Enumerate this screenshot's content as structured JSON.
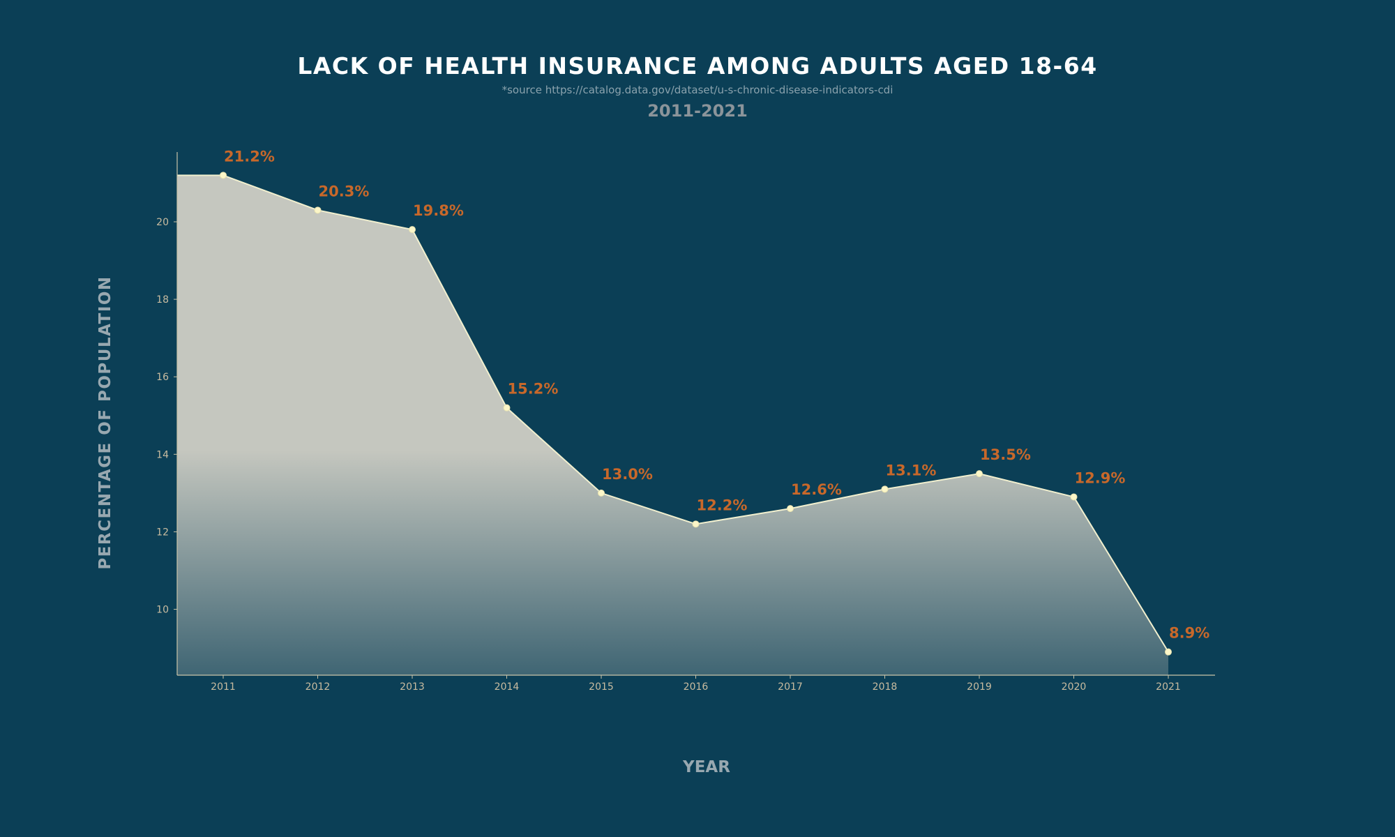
{
  "chart_data": {
    "type": "area",
    "title": "LACK OF HEALTH INSURANCE AMONG ADULTS AGED 18-64",
    "source_note": "*source https://catalog.data.gov/dataset/u-s-chronic-disease-indicators-cdi",
    "subtitle": "2011-2021",
    "xlabel": "YEAR",
    "ylabel": "PERCENTAGE OF POPULATION",
    "categories": [
      "2011",
      "2012",
      "2013",
      "2014",
      "2015",
      "2016",
      "2017",
      "2018",
      "2019",
      "2020",
      "2021"
    ],
    "values": [
      21.2,
      20.3,
      19.8,
      15.2,
      13.0,
      12.2,
      12.6,
      13.1,
      13.5,
      12.9,
      8.9
    ],
    "data_labels": [
      "21.2%",
      "20.3%",
      "19.8%",
      "15.2%",
      "13.0%",
      "12.2%",
      "12.6%",
      "13.1%",
      "13.5%",
      "12.9%",
      "8.9%"
    ],
    "yticks": [
      10,
      12,
      14,
      16,
      18,
      20
    ],
    "ylim": [
      8.3,
      21.8
    ],
    "grid": false,
    "legend": "none",
    "colors": {
      "background": "#0b3f56",
      "area_top": "#c5c7bf",
      "line": "#f2f0cf",
      "marker": "#fbf6c8",
      "data_label": "#c8682a",
      "axis": "#c9c3a8",
      "tick_label": "#c9bca0",
      "axis_title": "#98a8b0"
    }
  }
}
